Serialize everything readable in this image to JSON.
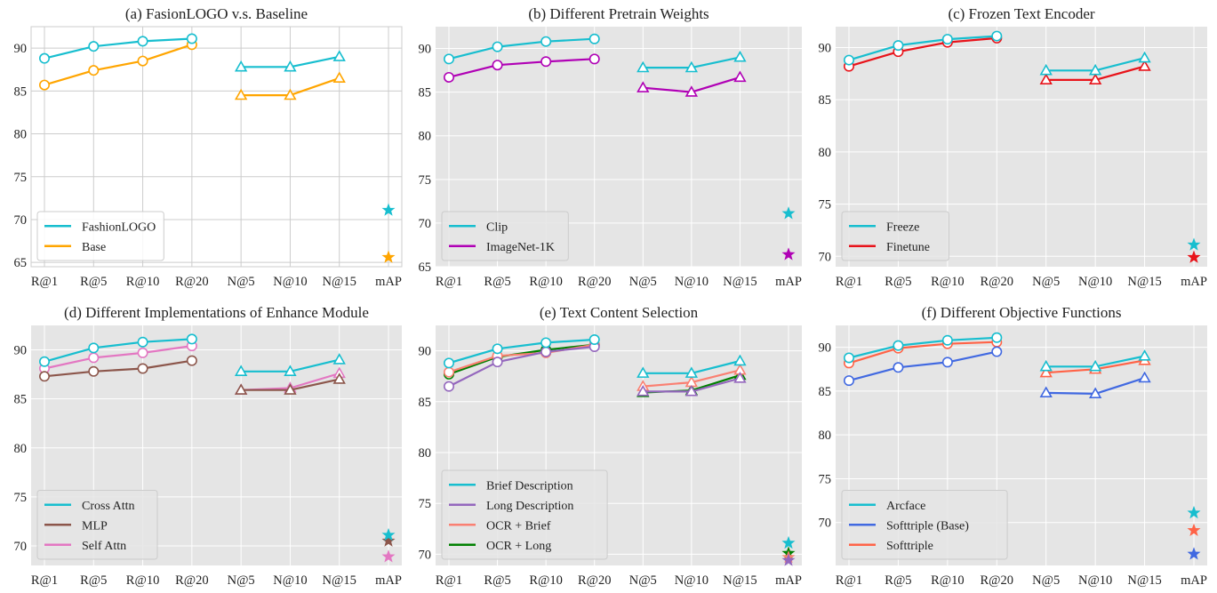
{
  "chart_data": [
    {
      "type": "line",
      "title": "(a) FasionLOGO v.s. Baseline",
      "categories": [
        "R@1",
        "R@5",
        "R@10",
        "R@20",
        "N@5",
        "N@10",
        "N@15",
        "mAP"
      ],
      "ylim": [
        64.5,
        92.5
      ],
      "yticks": [
        65,
        70,
        75,
        80,
        85,
        90
      ],
      "grid": true,
      "background": "#ffffff",
      "grid_color": "#cccccc",
      "legend_position": "bottom-left",
      "series": [
        {
          "name": "FashionLOGO",
          "color": "#17becf",
          "values": [
            88.8,
            90.2,
            90.8,
            91.1,
            87.8,
            87.8,
            89.0,
            71.1
          ]
        },
        {
          "name": "Base",
          "color": "#ffa500",
          "values": [
            85.7,
            87.4,
            88.5,
            90.4,
            84.5,
            84.5,
            86.5,
            65.6
          ]
        }
      ]
    },
    {
      "type": "line",
      "title": "(b) Different Pretrain Weights",
      "categories": [
        "R@1",
        "R@5",
        "R@10",
        "R@20",
        "N@5",
        "N@10",
        "N@15",
        "mAP"
      ],
      "ylim": [
        65,
        92.5
      ],
      "yticks": [
        65,
        70,
        75,
        80,
        85,
        90
      ],
      "grid": true,
      "background": "#e5e5e5",
      "grid_color": "#ffffff",
      "legend_position": "bottom-left",
      "series": [
        {
          "name": "Clip",
          "color": "#17becf",
          "values": [
            88.8,
            90.2,
            90.8,
            91.1,
            87.8,
            87.8,
            89.0,
            71.1
          ]
        },
        {
          "name": "ImageNet-1K",
          "color": "#b000b5",
          "values": [
            86.7,
            88.1,
            88.5,
            88.8,
            85.5,
            85.0,
            86.7,
            66.4
          ]
        }
      ]
    },
    {
      "type": "line",
      "title": "(c) Frozen Text Encoder",
      "categories": [
        "R@1",
        "R@5",
        "R@10",
        "R@20",
        "N@5",
        "N@10",
        "N@15",
        "mAP"
      ],
      "ylim": [
        69.0,
        92.0
      ],
      "yticks": [
        70,
        75,
        80,
        85,
        90
      ],
      "grid": true,
      "background": "#e5e5e5",
      "grid_color": "#ffffff",
      "legend_position": "bottom-left",
      "series": [
        {
          "name": "Freeze",
          "color": "#17becf",
          "values": [
            88.8,
            90.2,
            90.8,
            91.1,
            87.8,
            87.8,
            89.0,
            71.1
          ]
        },
        {
          "name": "Finetune",
          "color": "#e8131a",
          "values": [
            88.2,
            89.6,
            90.5,
            90.9,
            86.9,
            86.9,
            88.2,
            69.9
          ]
        }
      ]
    },
    {
      "type": "line",
      "title": "(d) Different Implementations of Enhance Module",
      "categories": [
        "R@1",
        "R@5",
        "R@10",
        "R@20",
        "N@5",
        "N@10",
        "N@15",
        "mAP"
      ],
      "ylim": [
        68.0,
        92.5
      ],
      "yticks": [
        70,
        75,
        80,
        85,
        90
      ],
      "grid": true,
      "background": "#e5e5e5",
      "grid_color": "#ffffff",
      "legend_position": "bottom-left",
      "series": [
        {
          "name": "Cross Attn",
          "color": "#17becf",
          "values": [
            88.8,
            90.2,
            90.8,
            91.1,
            87.8,
            87.8,
            89.0,
            71.1
          ]
        },
        {
          "name": "MLP",
          "color": "#8c564b",
          "values": [
            87.3,
            87.8,
            88.1,
            88.9,
            85.9,
            85.9,
            87.0,
            70.5
          ]
        },
        {
          "name": "Self Attn",
          "color": "#e377c2",
          "values": [
            88.1,
            89.2,
            89.7,
            90.4,
            85.9,
            86.1,
            87.6,
            68.9
          ]
        }
      ]
    },
    {
      "type": "line",
      "title": "(e) Text Content Selection",
      "categories": [
        "R@1",
        "R@5",
        "R@10",
        "R@20",
        "N@5",
        "N@10",
        "N@15",
        "mAP"
      ],
      "ylim": [
        68.9,
        92.5
      ],
      "yticks": [
        70,
        75,
        80,
        85,
        90
      ],
      "grid": true,
      "background": "#e5e5e5",
      "grid_color": "#ffffff",
      "legend_position": "bottom-left",
      "series": [
        {
          "name": "Brief Description",
          "color": "#17becf",
          "values": [
            88.8,
            90.2,
            90.8,
            91.1,
            87.8,
            87.8,
            89.0,
            71.1
          ]
        },
        {
          "name": "Long Description",
          "color": "#9467bd",
          "values": [
            86.5,
            88.9,
            89.9,
            90.4,
            86.0,
            86.0,
            87.3,
            69.4
          ]
        },
        {
          "name": "OCR + Brief",
          "color": "#fa8072",
          "values": [
            87.9,
            89.5,
            89.8,
            90.6,
            86.5,
            86.9,
            88.1,
            69.7
          ]
        },
        {
          "name": "OCR + Long",
          "color": "#008000",
          "values": [
            87.7,
            89.4,
            90.1,
            90.6,
            85.9,
            86.1,
            87.6,
            70.1
          ]
        }
      ]
    },
    {
      "type": "line",
      "title": "(f) Different Objective Functions",
      "categories": [
        "R@1",
        "R@5",
        "R@10",
        "R@20",
        "N@5",
        "N@10",
        "N@15",
        "mAP"
      ],
      "ylim": [
        65.1,
        92.5
      ],
      "yticks": [
        70,
        75,
        80,
        85,
        90
      ],
      "grid": true,
      "background": "#e5e5e5",
      "grid_color": "#ffffff",
      "legend_position": "bottom-left",
      "series": [
        {
          "name": "Arcface",
          "color": "#17becf",
          "values": [
            88.8,
            90.2,
            90.8,
            91.1,
            87.8,
            87.8,
            89.0,
            71.1
          ]
        },
        {
          "name": "Softtriple (Base)",
          "color": "#4169e1",
          "values": [
            86.2,
            87.7,
            88.3,
            89.5,
            84.8,
            84.7,
            86.5,
            66.4
          ]
        },
        {
          "name": "Softtriple",
          "color": "#ff6347",
          "values": [
            88.2,
            89.9,
            90.4,
            90.6,
            87.1,
            87.5,
            88.5,
            69.1
          ]
        }
      ]
    }
  ]
}
